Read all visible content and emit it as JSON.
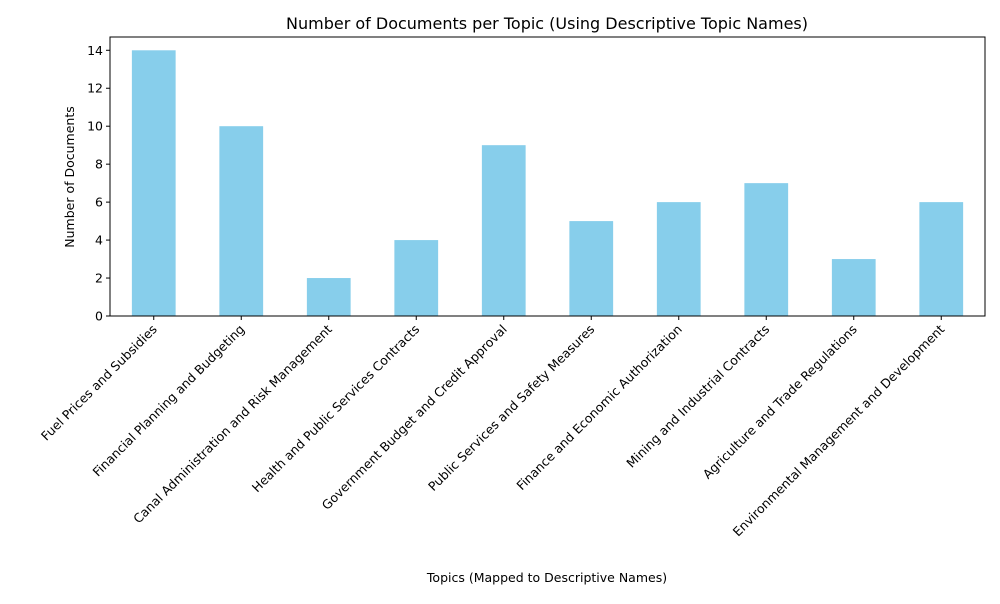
{
  "chart_data": {
    "type": "bar",
    "title": "Number of Documents per Topic (Using Descriptive Topic Names)",
    "xlabel": "Topics (Mapped to Descriptive Names)",
    "ylabel": "Number of Documents",
    "categories": [
      "Fuel Prices and Subsidies",
      "Financial Planning and Budgeting",
      "Canal Administration and Risk Management",
      "Health and Public Services Contracts",
      "Government Budget and Credit Approval",
      "Public Services and Safety Measures",
      "Finance and Economic Authorization",
      "Mining and Industrial Contracts",
      "Agriculture and Trade Regulations",
      "Environmental Management and Development"
    ],
    "values": [
      14,
      10,
      2,
      4,
      9,
      5,
      6,
      7,
      3,
      6
    ],
    "yticks": [
      0,
      2,
      4,
      6,
      8,
      10,
      12,
      14
    ],
    "ylim": [
      0,
      14.7
    ],
    "bar_color": "#87ceeb",
    "grid": false,
    "legend": "none"
  }
}
